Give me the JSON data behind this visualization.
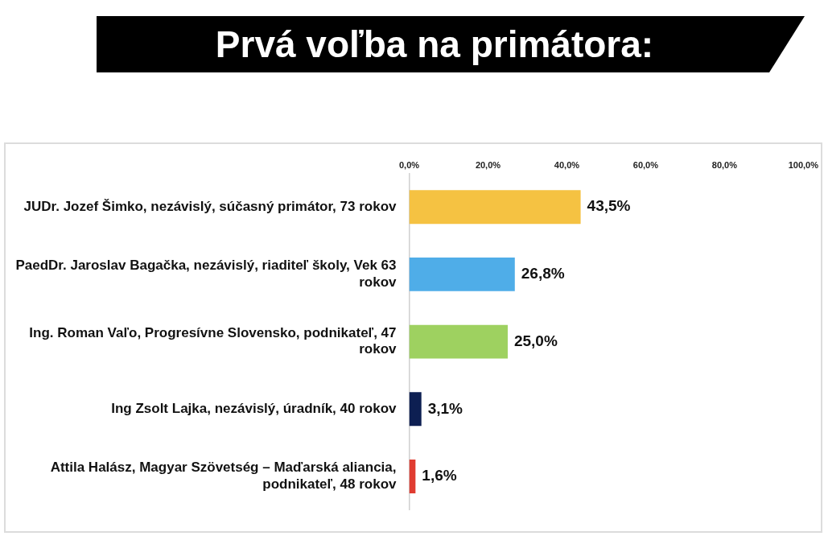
{
  "chart_data": {
    "type": "bar",
    "orientation": "horizontal",
    "title": "Prvá voľba na primátora:",
    "categories": [
      "JUDr. Jozef Šimko, nezávislý, súčasný primátor, 73 rokov",
      "PaedDr. Jaroslav Bagačka, nezávislý, riaditeľ školy, Vek 63 rokov",
      "Ing. Roman Vaľo, Progresívne Slovensko, podnikateľ, 47 rokov",
      "Ing Zsolt Lajka, nezávislý, úradník, 40 rokov",
      "Attila Halász, Magyar Szövetség – Maďarská aliancia, podnikateľ, 48 rokov"
    ],
    "values": [
      43.5,
      26.8,
      25.0,
      3.1,
      1.6
    ],
    "value_labels": [
      "43,5%",
      "26,8%",
      "25,0%",
      "3,1%",
      "1,6%"
    ],
    "colors": [
      "#f5c242",
      "#4fade8",
      "#9ed160",
      "#0d1f52",
      "#e03c31"
    ],
    "xlim": [
      0,
      100
    ],
    "xticks": [
      {
        "value": 0,
        "label": "0,0%"
      },
      {
        "value": 20,
        "label": "20,0%"
      },
      {
        "value": 40,
        "label": "40,0%"
      },
      {
        "value": 60,
        "label": "60,0%"
      },
      {
        "value": 80,
        "label": "80,0%"
      },
      {
        "value": 100,
        "label": "100,0%"
      }
    ],
    "grid": false,
    "legend": false
  }
}
